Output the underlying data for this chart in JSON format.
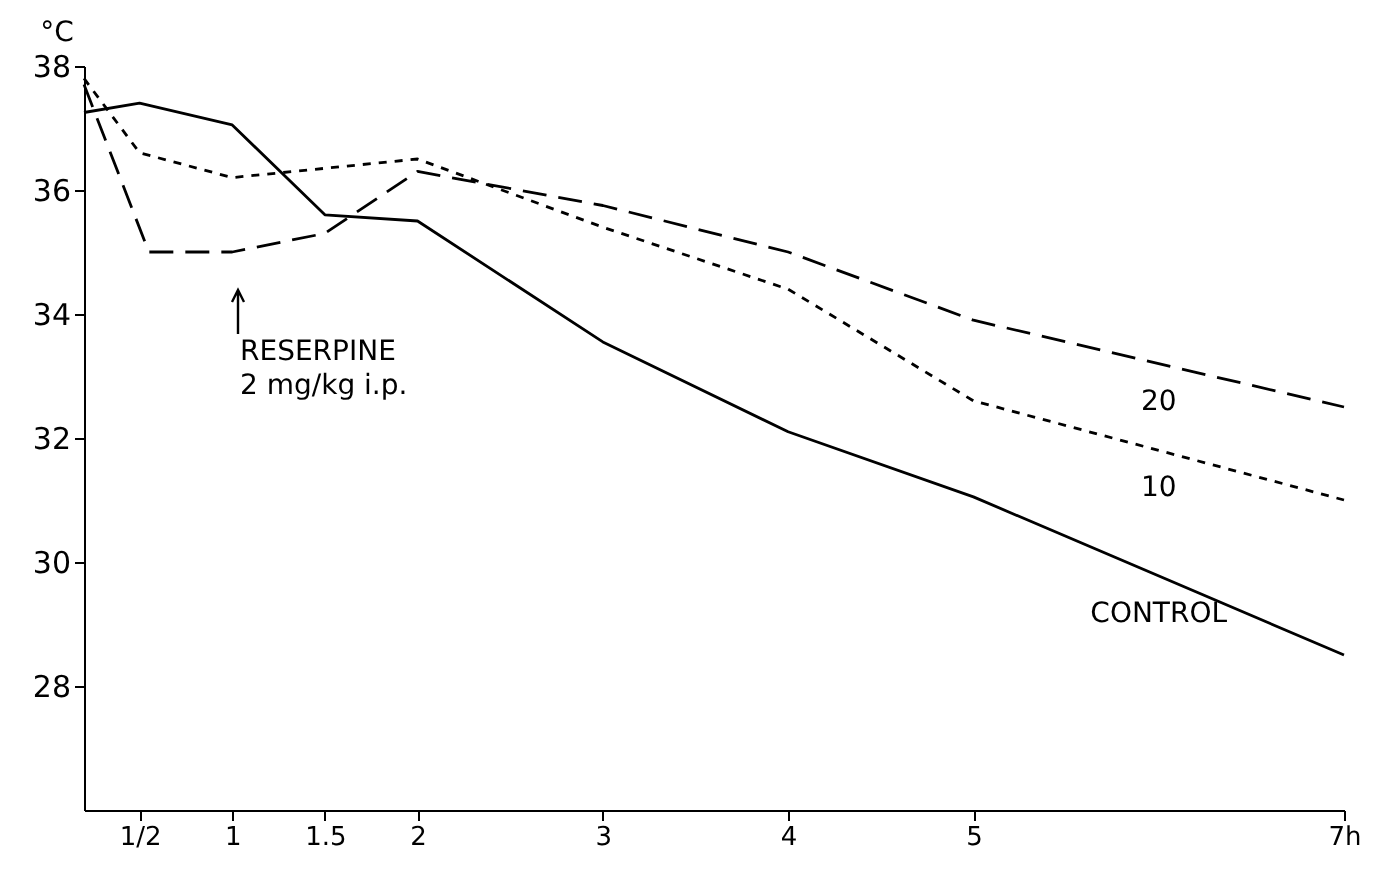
{
  "chart_data": {
    "type": "line",
    "xlim": [
      0.2,
      7
    ],
    "ylim": [
      26,
      38
    ],
    "xticks": [
      {
        "value": 0.5,
        "label": "1/2"
      },
      1,
      1.5,
      2,
      3,
      4,
      5,
      {
        "value": 7,
        "label": "7h"
      }
    ],
    "yticks": [
      28,
      30,
      32,
      34,
      36,
      38
    ],
    "ylabel": "°C",
    "grid": false,
    "marker": "none",
    "series": [
      {
        "name": "CONTROL",
        "color": "#000000",
        "line_style": "solid",
        "x": [
          0.2,
          0.5,
          1,
          1.5,
          2,
          3,
          4,
          5,
          7
        ],
        "values": [
          37.25,
          37.4,
          37.05,
          35.6,
          35.5,
          33.55,
          32.1,
          31.05,
          28.5
        ]
      },
      {
        "name": "10",
        "color": "#000000",
        "line_style": "dotted",
        "x": [
          0.2,
          0.5,
          1,
          2,
          3,
          4,
          5,
          7
        ],
        "values": [
          37.8,
          36.6,
          36.2,
          36.5,
          35.4,
          34.4,
          32.6,
          31.0
        ]
      },
      {
        "name": "20",
        "color": "#000000",
        "line_style": "dashed",
        "x": [
          0.2,
          0.55,
          1,
          1.5,
          2,
          3,
          4,
          5,
          7
        ],
        "values": [
          37.7,
          35.0,
          35.0,
          35.3,
          36.3,
          35.75,
          35.0,
          33.9,
          32.5
        ]
      }
    ],
    "annotations": [
      "RESERPINE\n2 mg/kg i.p."
    ]
  }
}
